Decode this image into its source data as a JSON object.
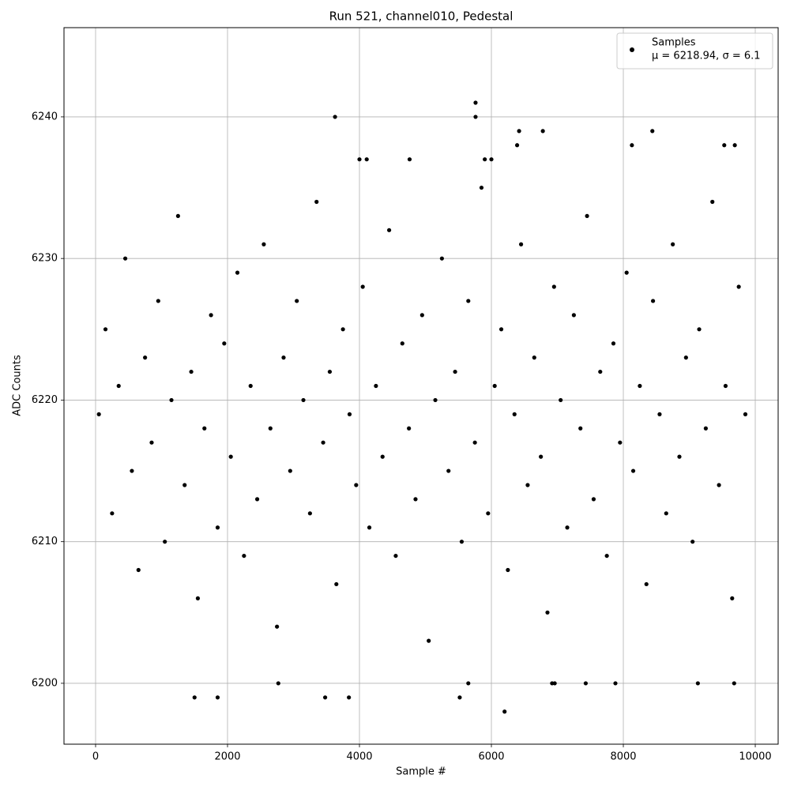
{
  "chart_data": {
    "type": "scatter",
    "title": "Run 521, channel010, Pedestal",
    "x_label": "Sample #",
    "y_label": "ADC Counts",
    "annotation": "μ = 6218.94, σ = 6.1",
    "legend_position": "upper right",
    "grid": true,
    "xlim": [
      -479,
      10347
    ],
    "xticks": [
      0,
      2000,
      4000,
      6000,
      8000,
      10000
    ],
    "ylim": [
      6195.7,
      6246.3
    ],
    "yticks": [
      6200,
      6210,
      6220,
      6230,
      6240
    ],
    "series": [
      {
        "name": "Samples",
        "color": "#000000",
        "x": [
          50,
          150,
          250,
          350,
          450,
          550,
          650,
          750,
          850,
          950,
          1050,
          1150,
          1250,
          1350,
          1450,
          1550,
          1650,
          1750,
          1850,
          1950,
          2050,
          2150,
          2250,
          2350,
          2450,
          2550,
          2650,
          2750,
          2850,
          2950,
          3050,
          3150,
          3250,
          3350,
          3450,
          3550,
          3650,
          3750,
          3850,
          3950,
          4050,
          4150,
          4250,
          4350,
          4450,
          4550,
          4650,
          4750,
          4850,
          4950,
          5050,
          5150,
          5250,
          5350,
          5450,
          5550,
          5650,
          5750,
          5850,
          5950,
          6050,
          6150,
          6250,
          6350,
          6450,
          6550,
          6650,
          6750,
          6850,
          6950,
          7050,
          7150,
          7250,
          7350,
          7450,
          7550,
          7650,
          7750,
          7850,
          7950,
          8050,
          8150,
          8250,
          8350,
          8450,
          8550,
          8650,
          8750,
          8850,
          8950,
          9050,
          9150,
          9250,
          9350,
          9450,
          9550,
          9650,
          9750,
          9850,
          3630,
          5760,
          5760,
          6200,
          5520,
          1500,
          1850,
          3480,
          3840,
          2770,
          5650,
          6920,
          6960,
          7430,
          7880,
          9130,
          9680,
          8440,
          6420,
          6780,
          8130,
          9530,
          9690,
          6390,
          4000,
          4110,
          4760,
          5900,
          6000
        ],
        "y": [
          6219,
          6225,
          6212,
          6221,
          6230,
          6215,
          6208,
          6223,
          6217,
          6227,
          6210,
          6220,
          6233,
          6214,
          6222,
          6206,
          6218,
          6226,
          6211,
          6224,
          6216,
          6229,
          6209,
          6221,
          6213,
          6231,
          6218,
          6204,
          6223,
          6215,
          6227,
          6220,
          6212,
          6234,
          6217,
          6222,
          6207,
          6225,
          6219,
          6214,
          6228,
          6211,
          6221,
          6216,
          6232,
          6209,
          6224,
          6218,
          6213,
          6226,
          6203,
          6220,
          6230,
          6215,
          6222,
          6210,
          6227,
          6217,
          6235,
          6212,
          6221,
          6225,
          6208,
          6219,
          6231,
          6214,
          6223,
          6216,
          6205,
          6228,
          6220,
          6211,
          6226,
          6218,
          6233,
          6213,
          6222,
          6209,
          6224,
          6217,
          6229,
          6215,
          6221,
          6207,
          6227,
          6219,
          6212,
          6231,
          6216,
          6223,
          6210,
          6225,
          6218,
          6234,
          6214,
          6221,
          6206,
          6228,
          6219,
          6240,
          6241,
          6240,
          6198,
          6199,
          6199,
          6199,
          6199,
          6199,
          6200,
          6200,
          6200,
          6200,
          6200,
          6200,
          6200,
          6200,
          6239,
          6239,
          6239,
          6238,
          6238,
          6238,
          6238,
          6237,
          6237,
          6237,
          6237,
          6237
        ]
      }
    ]
  }
}
